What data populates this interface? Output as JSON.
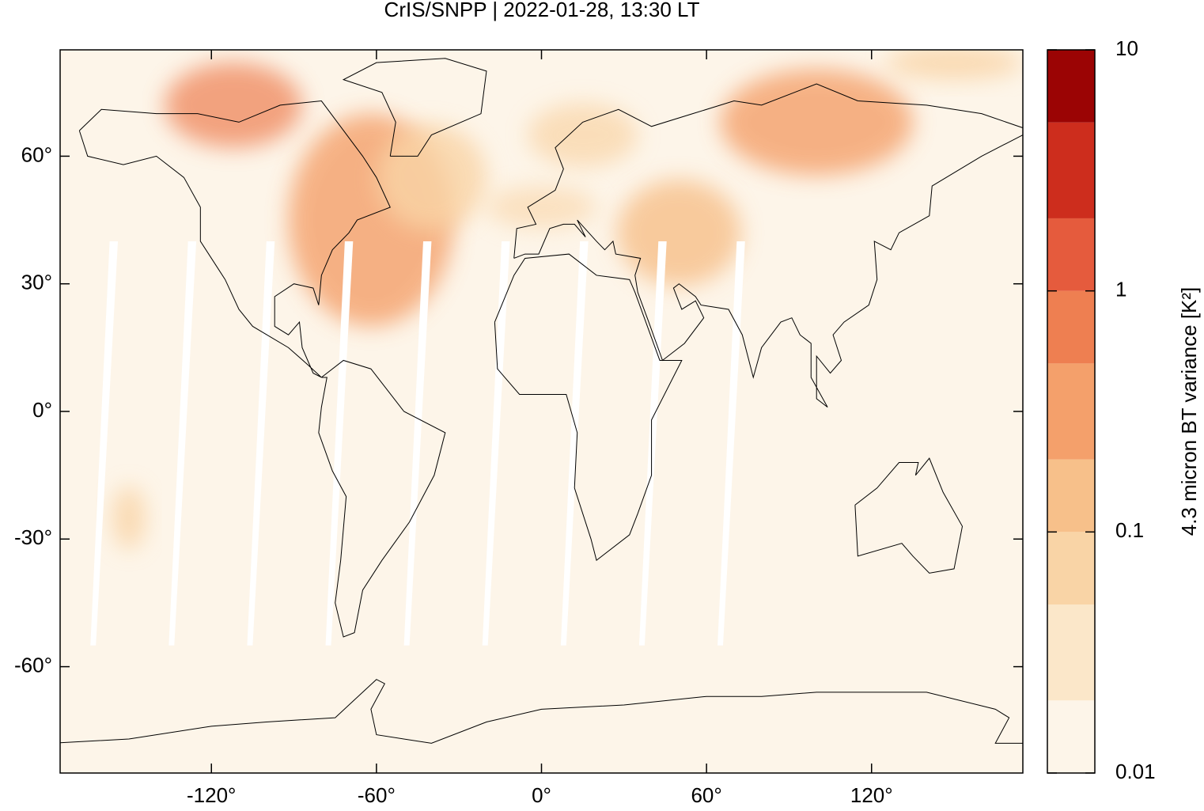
{
  "chart_data": {
    "type": "map",
    "title": "CrIS/SNPP | 2022-01-28, 13:30 LT",
    "xlim": [
      -175,
      175
    ],
    "ylim": [
      -85,
      85
    ],
    "xticks": [
      {
        "value": -120,
        "label": "-120°"
      },
      {
        "value": -60,
        "label": "-60°"
      },
      {
        "value": 0,
        "label": "0°"
      },
      {
        "value": 60,
        "label": "60°"
      },
      {
        "value": 120,
        "label": "120°"
      }
    ],
    "yticks": [
      {
        "value": -60,
        "label": "-60°"
      },
      {
        "value": -30,
        "label": "-30°"
      },
      {
        "value": 0,
        "label": "0°"
      },
      {
        "value": 30,
        "label": "30°"
      },
      {
        "value": 60,
        "label": "60°"
      }
    ],
    "colorbar": {
      "label": "4.3 micron BT variance [K²]",
      "log": true,
      "levels": [
        0.01,
        0.02,
        0.05,
        0.1,
        0.2,
        0.5,
        1,
        2,
        5,
        10
      ],
      "colors": [
        "#fdf5e9",
        "#fbe7c9",
        "#f9d4a6",
        "#f7c08a",
        "#f4a06b",
        "#ee7f51",
        "#e55b3d",
        "#cd2d1d",
        "#9b0404"
      ],
      "ylim": [
        0.01,
        10
      ],
      "ticks": [
        0.01,
        0.1,
        1,
        10
      ]
    }
  }
}
